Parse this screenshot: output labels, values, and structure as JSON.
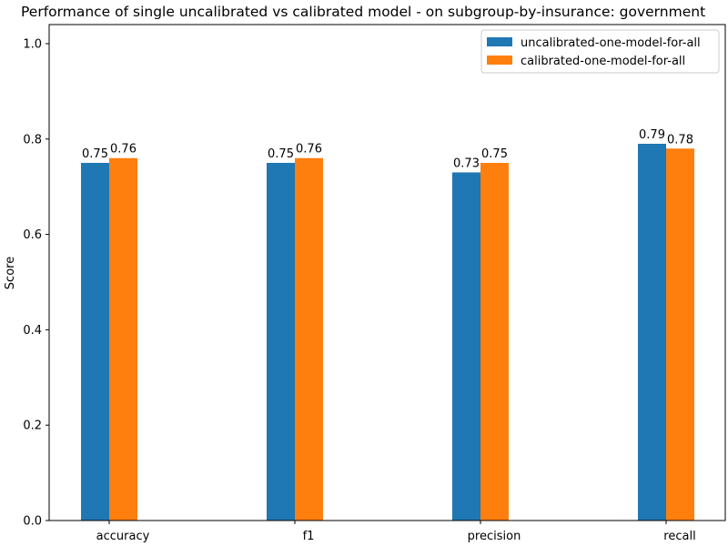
{
  "chart_data": {
    "type": "bar",
    "title": "Performance of single uncalibrated vs calibrated model - on subgroup-by-insurance: government",
    "xlabel": "",
    "ylabel": "Score",
    "categories": [
      "accuracy",
      "f1",
      "precision",
      "recall"
    ],
    "series": [
      {
        "name": "uncalibrated-one-model-for-all",
        "color": "#1f77b4",
        "values": [
          0.75,
          0.75,
          0.73,
          0.79
        ]
      },
      {
        "name": "calibrated-one-model-for-all",
        "color": "#ff7f0e",
        "values": [
          0.76,
          0.76,
          0.75,
          0.78
        ]
      }
    ],
    "ylim": [
      0,
      1.04
    ],
    "yticks": [
      0.0,
      0.2,
      0.4,
      0.6,
      0.8,
      1.0
    ],
    "ytick_labels": [
      "0.0",
      "0.2",
      "0.4",
      "0.6",
      "0.8",
      "1.0"
    ],
    "data_labels": [
      [
        "0.75",
        "0.75",
        "0.73",
        "0.79"
      ],
      [
        "0.76",
        "0.76",
        "0.75",
        "0.78"
      ]
    ],
    "grid": false,
    "legend_position": "top-right"
  }
}
